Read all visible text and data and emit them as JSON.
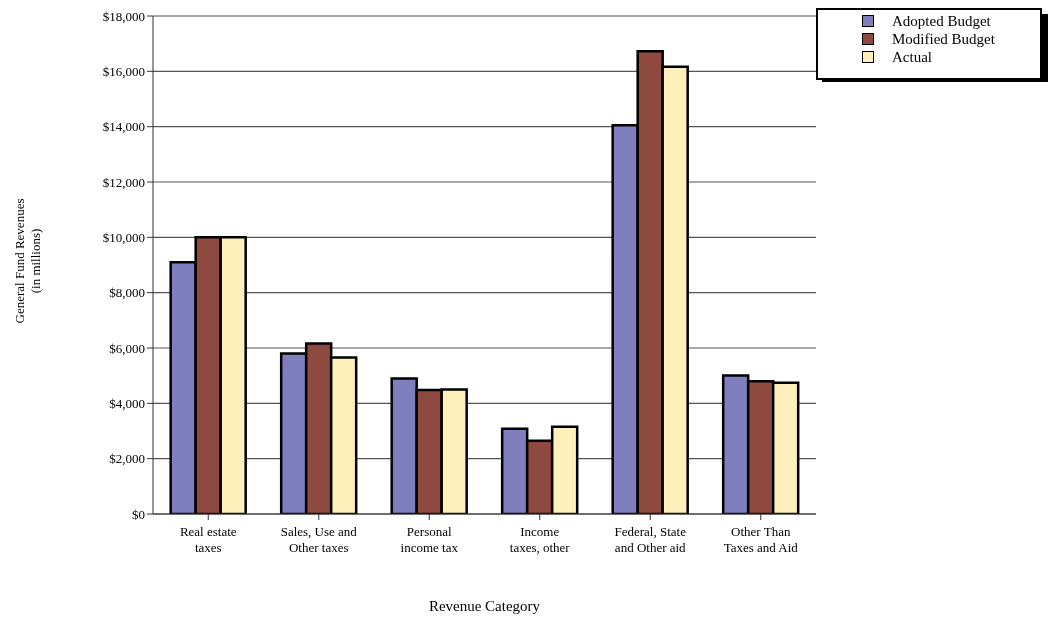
{
  "chart_data": {
    "type": "bar",
    "xlabel": "Revenue Category",
    "ylabel": "General Fund Revenues\n(in millions)",
    "categories": [
      "Real estate\ntaxes",
      "Sales, Use and\nOther taxes",
      "Personal\nincome tax",
      "Income\ntaxes, other",
      "Federal, State\nand Other aid",
      "Other Than\nTaxes and Aid"
    ],
    "series": [
      {
        "name": "Adopted Budget",
        "color": "#7f7fbf",
        "values": [
          9100,
          5800,
          4900,
          3080,
          14050,
          5010
        ]
      },
      {
        "name": "Modified Budget",
        "color": "#8f4a40",
        "values": [
          10000,
          6160,
          4480,
          2650,
          16730,
          4800
        ]
      },
      {
        "name": "Actual",
        "color": "#fff0bb",
        "values": [
          10000,
          5660,
          4500,
          3150,
          16170,
          4740
        ]
      }
    ],
    "ylim": [
      0,
      18000
    ],
    "yticks": [
      {
        "value": 0,
        "label": "$0"
      },
      {
        "value": 2000,
        "label": "$2,000"
      },
      {
        "value": 4000,
        "label": "$4,000"
      },
      {
        "value": 6000,
        "label": "$6,000"
      },
      {
        "value": 8000,
        "label": "$8,000"
      },
      {
        "value": 10000,
        "label": "$10,000"
      },
      {
        "value": 12000,
        "label": "$12,000"
      },
      {
        "value": 14000,
        "label": "$14,000"
      },
      {
        "value": 16000,
        "label": "$16,000"
      },
      {
        "value": 18000,
        "label": "$18,000"
      }
    ],
    "grid": "y",
    "legend": "top right"
  }
}
